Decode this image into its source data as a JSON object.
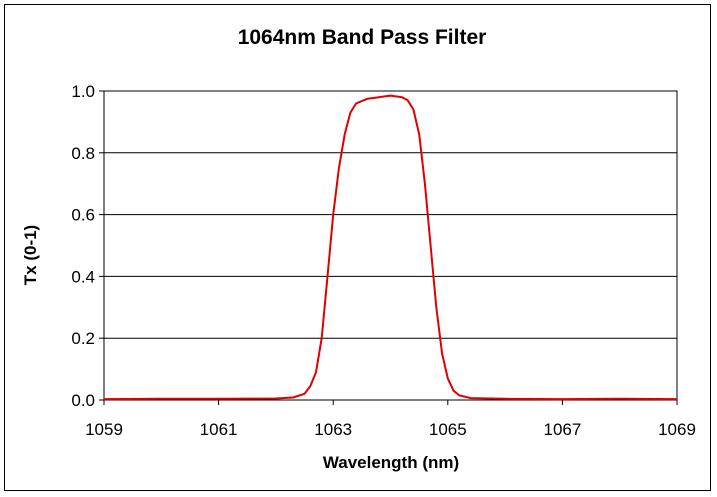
{
  "chart_data": {
    "type": "line",
    "title": "1064nm Band Pass Filter",
    "xlabel": "Wavelength (nm)",
    "ylabel": "Tx (0-1)",
    "xlim": [
      1059,
      1069
    ],
    "ylim": [
      0,
      1
    ],
    "xticks": [
      1059,
      1061,
      1063,
      1065,
      1067,
      1069
    ],
    "yticks": [
      "0.0",
      "0.2",
      "0.4",
      "0.6",
      "0.8",
      "1.0"
    ],
    "grid": "horizontal",
    "series": [
      {
        "color": "#e00000",
        "points": [
          [
            1059.0,
            0.003
          ],
          [
            1060.0,
            0.004
          ],
          [
            1061.0,
            0.004
          ],
          [
            1062.0,
            0.005
          ],
          [
            1062.3,
            0.008
          ],
          [
            1062.5,
            0.02
          ],
          [
            1062.6,
            0.045
          ],
          [
            1062.7,
            0.09
          ],
          [
            1062.8,
            0.2
          ],
          [
            1062.9,
            0.4
          ],
          [
            1063.0,
            0.6
          ],
          [
            1063.1,
            0.75
          ],
          [
            1063.2,
            0.86
          ],
          [
            1063.3,
            0.93
          ],
          [
            1063.4,
            0.96
          ],
          [
            1063.6,
            0.975
          ],
          [
            1063.8,
            0.98
          ],
          [
            1064.0,
            0.985
          ],
          [
            1064.2,
            0.98
          ],
          [
            1064.3,
            0.97
          ],
          [
            1064.4,
            0.94
          ],
          [
            1064.5,
            0.86
          ],
          [
            1064.6,
            0.7
          ],
          [
            1064.7,
            0.5
          ],
          [
            1064.8,
            0.3
          ],
          [
            1064.9,
            0.15
          ],
          [
            1065.0,
            0.07
          ],
          [
            1065.1,
            0.03
          ],
          [
            1065.2,
            0.015
          ],
          [
            1065.4,
            0.006
          ],
          [
            1066.0,
            0.004
          ],
          [
            1067.0,
            0.003
          ],
          [
            1068.0,
            0.004
          ],
          [
            1069.0,
            0.003
          ]
        ]
      }
    ]
  }
}
